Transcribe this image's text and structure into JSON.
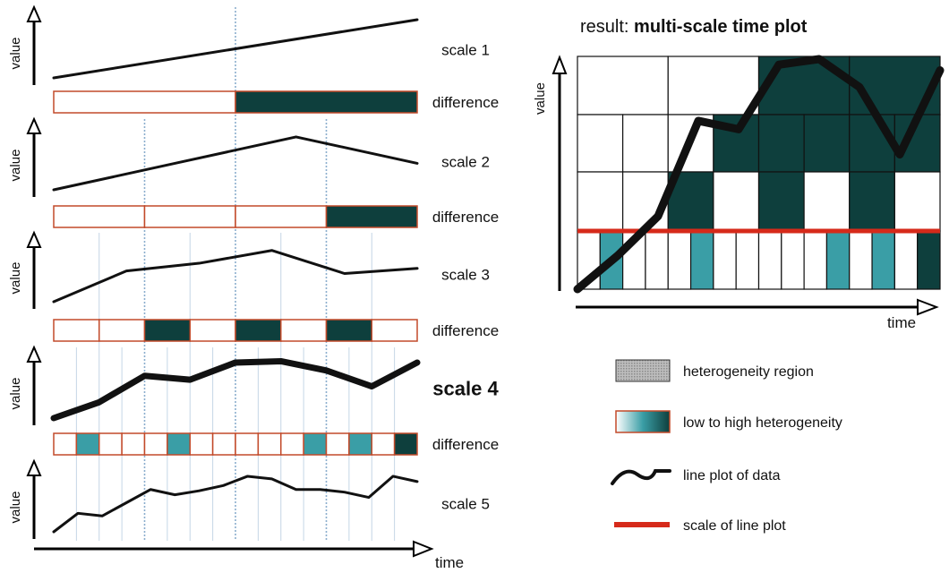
{
  "colors": {
    "dark_teal": "#0e3f3d",
    "light_teal": "#3a9ea6",
    "red": "#d62a1a",
    "bar_border": "#c24a2a",
    "grid_dotted": "#7f9fbf",
    "grid_blue": "#7fa6c8"
  },
  "left_panel": {
    "axis_value_label": "value",
    "axis_time_label": "time",
    "difference_label": "difference",
    "scales": [
      {
        "label": "scale 1",
        "bold": false,
        "y": [
          0,
          1
        ],
        "bar": [
          0,
          3
        ]
      },
      {
        "label": "scale 2",
        "bold": false,
        "y": [
          0,
          1,
          2,
          1
        ],
        "bar": [
          0,
          0,
          0,
          3
        ]
      },
      {
        "label": "scale 3",
        "bold": false,
        "y": [
          0,
          1.2,
          1.5,
          2,
          1.1,
          1.3
        ],
        "bar": [
          0,
          0,
          3,
          0,
          3,
          0,
          3,
          0
        ]
      },
      {
        "label": "scale 4",
        "bold": true,
        "y": [
          0,
          0.6,
          1.6,
          1.45,
          2.1,
          2.15,
          1.8,
          1.2,
          2.1
        ],
        "bar": [
          0,
          2,
          0,
          0,
          0,
          2,
          0,
          0,
          0,
          0,
          0,
          2,
          0,
          2,
          0,
          3
        ]
      },
      {
        "label": "scale 5",
        "bold": false,
        "y": [
          0,
          0.7,
          0.6,
          1.1,
          1.6,
          1.4,
          1.55,
          1.75,
          2.1,
          2.0,
          1.6,
          1.6,
          1.5,
          1.3,
          2.1,
          1.9
        ]
      }
    ]
  },
  "right_panel": {
    "title_prefix": "result: ",
    "title_bold": "multi-scale time plot",
    "axis_value_label": "value",
    "axis_time_label": "time",
    "grid_rows": [
      [
        0,
        0,
        3,
        3
      ],
      [
        0,
        0,
        0,
        3,
        3,
        3,
        3,
        3
      ],
      [
        0,
        0,
        3,
        0,
        3,
        0,
        3,
        0
      ],
      [
        0,
        2,
        0,
        0,
        0,
        2,
        0,
        0,
        0,
        0,
        0,
        2,
        0,
        2,
        0,
        3
      ]
    ],
    "line_y": [
      0,
      0.6,
      1.3,
      3.0,
      2.85,
      4.0,
      4.1,
      3.6,
      2.4,
      3.9
    ]
  },
  "legend": [
    {
      "key": "heterogeneity-region",
      "label": "heterogeneity region"
    },
    {
      "key": "low-to-high",
      "label": "low to high heterogeneity"
    },
    {
      "key": "line-plot",
      "label": "line plot of data"
    },
    {
      "key": "scale-line",
      "label": "scale of line plot"
    }
  ]
}
